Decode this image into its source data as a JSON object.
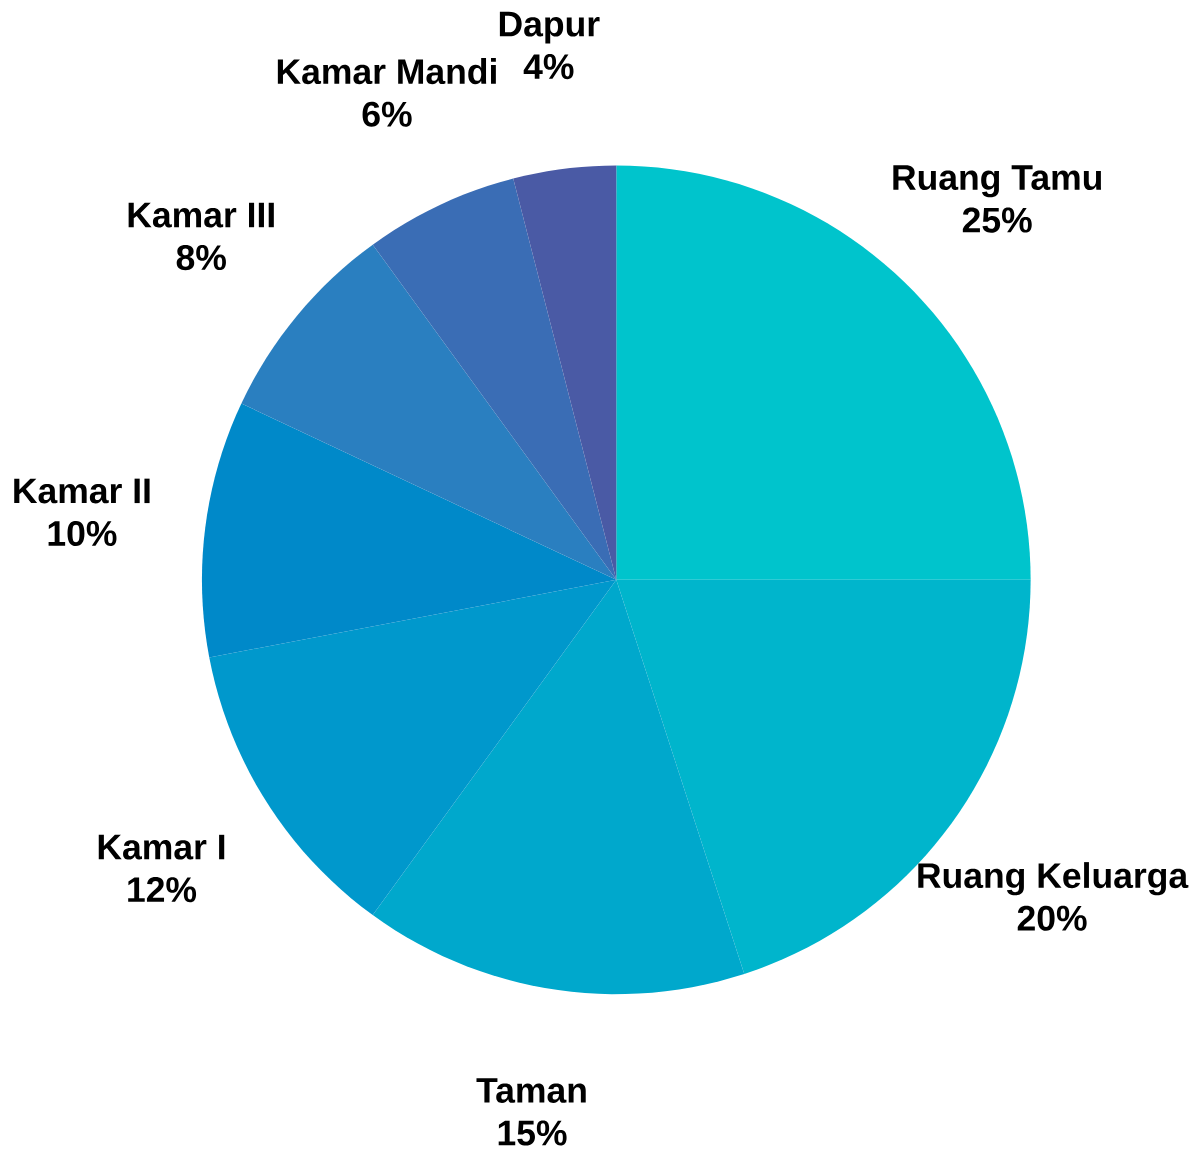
{
  "chart_data": {
    "type": "pie",
    "categories": [
      "Ruang Tamu",
      "Ruang Keluarga",
      "Taman",
      "Kamar I",
      "Kamar II",
      "Kamar III",
      "Kamar Mandi",
      "Dapur"
    ],
    "values": [
      25,
      20,
      15,
      12,
      10,
      8,
      6,
      4
    ],
    "value_labels": [
      "25%",
      "20%",
      "15%",
      "12%",
      "10%",
      "8%",
      "6%",
      "4%"
    ],
    "colors": [
      "#00c4cc",
      "#00b5cc",
      "#00a8cc",
      "#0098cc",
      "#0089c9",
      "#2a7fc0",
      "#3a6db5",
      "#4a5aa5"
    ]
  }
}
